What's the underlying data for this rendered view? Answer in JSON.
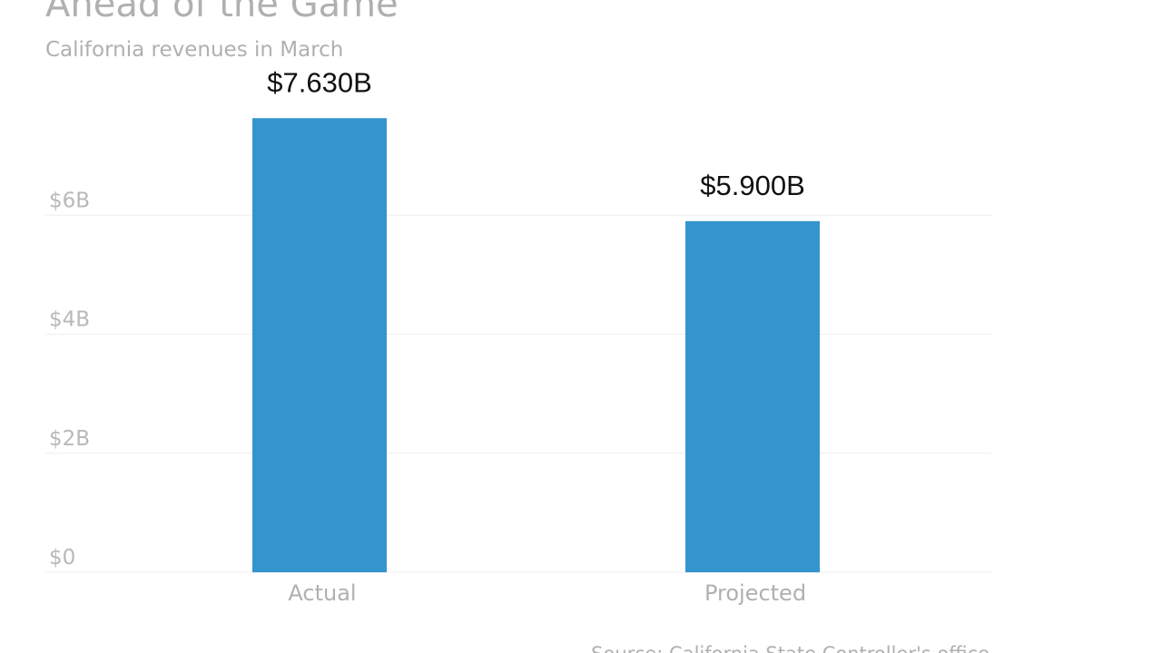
{
  "chart_data": {
    "type": "bar",
    "title": "Ahead of the Game",
    "subtitle": "California revenues in March",
    "source": "Source: California State Controller's office",
    "categories": [
      "Actual",
      "Projected"
    ],
    "values": [
      7.63,
      5.9
    ],
    "value_labels": [
      "$7.630B",
      "$5.900B"
    ],
    "color": "#3494cd",
    "ylim": [
      0,
      8
    ],
    "yticks": [
      {
        "value": 0,
        "label": "$0"
      },
      {
        "value": 2,
        "label": "$2B"
      },
      {
        "value": 4,
        "label": "$4B"
      },
      {
        "value": 6,
        "label": "$6B"
      }
    ],
    "grid": true
  }
}
